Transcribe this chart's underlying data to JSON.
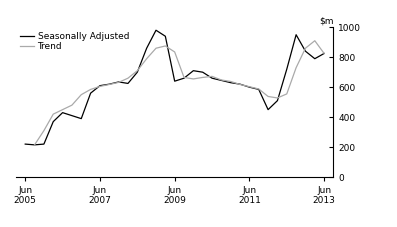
{
  "ylim": [
    0,
    1000
  ],
  "yticks": [
    0,
    200,
    400,
    600,
    800,
    1000
  ],
  "xlim": [
    2005.25,
    2013.75
  ],
  "xtick_positions": [
    2005.5,
    2007.5,
    2009.5,
    2011.5,
    2013.5
  ],
  "xtick_labels": [
    "Jun\n2005",
    "Jun\n2007",
    "Jun\n2009",
    "Jun\n2011",
    "Jun\n2013"
  ],
  "seasonally_adjusted_x": [
    2005.5,
    2005.75,
    2006.0,
    2006.25,
    2006.5,
    2006.75,
    2007.0,
    2007.25,
    2007.5,
    2007.75,
    2008.0,
    2008.25,
    2008.5,
    2008.75,
    2009.0,
    2009.25,
    2009.5,
    2009.75,
    2010.0,
    2010.25,
    2010.5,
    2010.75,
    2011.0,
    2011.25,
    2011.5,
    2011.75,
    2012.0,
    2012.25,
    2012.5,
    2012.75,
    2013.0,
    2013.25,
    2013.5
  ],
  "seasonally_adjusted_y": [
    220,
    215,
    220,
    370,
    430,
    410,
    390,
    560,
    610,
    620,
    635,
    625,
    700,
    860,
    980,
    940,
    640,
    660,
    710,
    700,
    660,
    645,
    630,
    620,
    600,
    585,
    450,
    510,
    720,
    950,
    840,
    790,
    825
  ],
  "trend_x": [
    2005.75,
    2006.0,
    2006.25,
    2006.5,
    2006.75,
    2007.0,
    2007.25,
    2007.5,
    2007.75,
    2008.0,
    2008.25,
    2008.5,
    2008.75,
    2009.0,
    2009.25,
    2009.5,
    2009.75,
    2010.0,
    2010.25,
    2010.5,
    2010.75,
    2011.0,
    2011.25,
    2011.5,
    2011.75,
    2012.0,
    2012.25,
    2012.5,
    2012.75,
    2013.0,
    2013.25,
    2013.5
  ],
  "trend_y": [
    215,
    310,
    420,
    450,
    480,
    550,
    585,
    605,
    618,
    632,
    660,
    710,
    790,
    860,
    875,
    835,
    665,
    655,
    665,
    672,
    648,
    638,
    618,
    603,
    588,
    538,
    528,
    555,
    730,
    860,
    910,
    825
  ],
  "sa_color": "#000000",
  "trend_color": "#aaaaaa",
  "background_color": "#ffffff",
  "legend_fontsize": 6.5,
  "axis_fontsize": 6.5,
  "linewidth": 0.9
}
